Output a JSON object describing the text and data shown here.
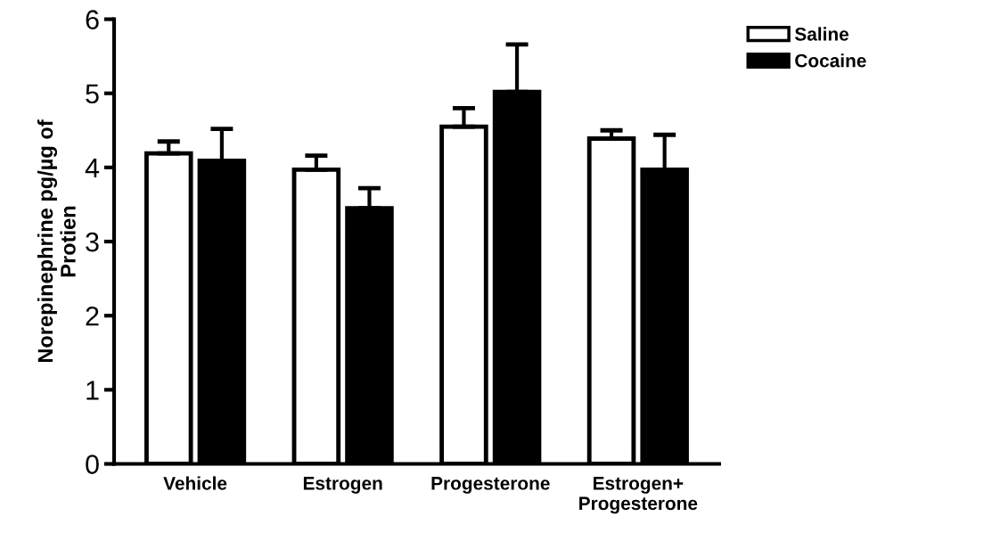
{
  "chart_data": {
    "type": "bar",
    "ylabel": "Norepinephrine pg/µg of\nProtien",
    "categories": [
      "Vehicle",
      "Estrogen",
      "Progesterone",
      "Estrogen+\nProgesterone"
    ],
    "series": [
      {
        "name": "Saline",
        "color": "#ffffff",
        "values": [
          4.19,
          3.97,
          4.55,
          4.39
        ],
        "errors": [
          [
            4.19,
            4.35
          ],
          [
            3.97,
            4.16
          ],
          [
            4.55,
            4.8
          ],
          [
            4.39,
            4.5
          ]
        ]
      },
      {
        "name": "Cocaine",
        "color": "#000000",
        "values": [
          4.09,
          3.45,
          5.02,
          3.97
        ],
        "errors": [
          [
            4.09,
            4.52
          ],
          [
            3.45,
            3.72
          ],
          [
            5.02,
            5.66
          ],
          [
            3.97,
            4.44
          ]
        ]
      }
    ],
    "ylim": [
      0,
      6
    ],
    "yticks": [
      0,
      1,
      2,
      3,
      4,
      5,
      6
    ],
    "grid": false,
    "legend": "top right"
  }
}
